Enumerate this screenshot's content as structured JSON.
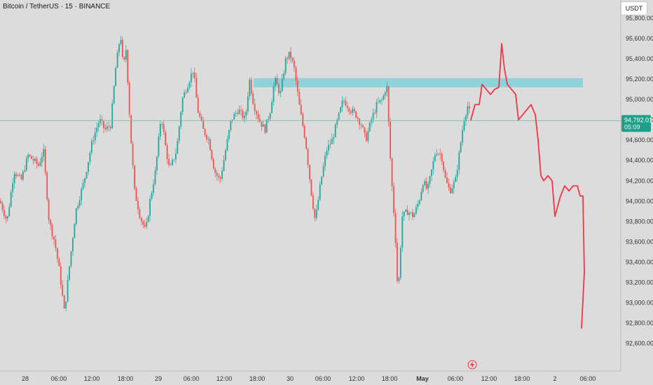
{
  "header": {
    "title": "Bitcoin / TetherUS · 15 · BINANCE",
    "currency_button": "USDT"
  },
  "colors": {
    "up": "#26a69a",
    "down": "#ef5350",
    "zone": "#8fd3da",
    "drawing": "#f23645",
    "price_line": "#7fb8a6",
    "badge": "#1f9e8a"
  },
  "chart_data": {
    "type": "candlestick",
    "title": "Bitcoin / TetherUS · 15 · BINANCE",
    "ylim": [
      92500,
      95950
    ],
    "y_ticks": [
      "95,800.00",
      "95,600.00",
      "95,400.00",
      "95,200.00",
      "95,000.00",
      "94,800.00",
      "94,600.00",
      "94,400.00",
      "94,200.00",
      "94,000.00",
      "93,800.00",
      "93,600.00",
      "93,400.00",
      "93,200.00",
      "93,000.00",
      "92,800.00",
      "92,600.00"
    ],
    "x_ticks": [
      "28",
      "06:00",
      "12:00",
      "18:00",
      "29",
      "06:00",
      "12:00",
      "18:00",
      "30",
      "06:00",
      "12:00",
      "18:00",
      "May",
      "06:00",
      "12:00",
      "18:00",
      "2",
      "06:00"
    ],
    "current_price": "94,792.01",
    "countdown": "05:09",
    "price_path": [
      [
        0,
        94000
      ],
      [
        10,
        93800
      ],
      [
        20,
        94300
      ],
      [
        30,
        94200
      ],
      [
        40,
        94450
      ],
      [
        48,
        94400
      ],
      [
        55,
        94350
      ],
      [
        62,
        94500
      ],
      [
        70,
        93800
      ],
      [
        78,
        93600
      ],
      [
        85,
        93300
      ],
      [
        92,
        92900
      ],
      [
        98,
        93300
      ],
      [
        108,
        93900
      ],
      [
        120,
        94200
      ],
      [
        132,
        94600
      ],
      [
        142,
        94800
      ],
      [
        150,
        94700
      ],
      [
        158,
        94750
      ],
      [
        165,
        95300
      ],
      [
        172,
        95650
      ],
      [
        176,
        95300
      ],
      [
        180,
        95500
      ],
      [
        186,
        94700
      ],
      [
        192,
        94100
      ],
      [
        200,
        93850
      ],
      [
        208,
        93700
      ],
      [
        214,
        94000
      ],
      [
        222,
        94300
      ],
      [
        230,
        94850
      ],
      [
        236,
        94550
      ],
      [
        242,
        94300
      ],
      [
        252,
        94500
      ],
      [
        260,
        95000
      ],
      [
        268,
        95150
      ],
      [
        276,
        95300
      ],
      [
        282,
        94900
      ],
      [
        290,
        94700
      ],
      [
        298,
        94600
      ],
      [
        306,
        94300
      ],
      [
        314,
        94200
      ],
      [
        322,
        94500
      ],
      [
        330,
        94800
      ],
      [
        340,
        94900
      ],
      [
        350,
        94800
      ],
      [
        356,
        95200
      ],
      [
        362,
        94950
      ],
      [
        370,
        94800
      ],
      [
        378,
        94700
      ],
      [
        386,
        94900
      ],
      [
        392,
        95200
      ],
      [
        400,
        95050
      ],
      [
        408,
        95400
      ],
      [
        414,
        95450
      ],
      [
        420,
        95300
      ],
      [
        428,
        94900
      ],
      [
        436,
        94600
      ],
      [
        444,
        94100
      ],
      [
        450,
        93800
      ],
      [
        458,
        94200
      ],
      [
        466,
        94500
      ],
      [
        474,
        94600
      ],
      [
        482,
        94800
      ],
      [
        490,
        95000
      ],
      [
        500,
        94900
      ],
      [
        508,
        94850
      ],
      [
        516,
        94750
      ],
      [
        522,
        94600
      ],
      [
        530,
        94800
      ],
      [
        538,
        94950
      ],
      [
        546,
        95000
      ],
      [
        552,
        95150
      ],
      [
        558,
        94300
      ],
      [
        564,
        93700
      ],
      [
        568,
        93050
      ],
      [
        574,
        93850
      ],
      [
        582,
        93900
      ],
      [
        590,
        93850
      ],
      [
        598,
        94000
      ],
      [
        604,
        94200
      ],
      [
        610,
        94100
      ],
      [
        616,
        94300
      ],
      [
        622,
        94500
      ],
      [
        630,
        94450
      ],
      [
        636,
        94200
      ],
      [
        642,
        94100
      ],
      [
        650,
        94200
      ],
      [
        656,
        94500
      ],
      [
        662,
        94800
      ],
      [
        668,
        94950
      ],
      [
        672,
        94800
      ]
    ],
    "drawing_path": [
      [
        672,
        94800
      ],
      [
        678,
        94950
      ],
      [
        684,
        94950
      ],
      [
        688,
        95150
      ],
      [
        694,
        95100
      ],
      [
        700,
        95050
      ],
      [
        706,
        95100
      ],
      [
        712,
        95120
      ],
      [
        716,
        95550
      ],
      [
        720,
        95300
      ],
      [
        724,
        95150
      ],
      [
        730,
        95100
      ],
      [
        736,
        95050
      ],
      [
        740,
        94800
      ],
      [
        746,
        94850
      ],
      [
        752,
        94900
      ],
      [
        758,
        94950
      ],
      [
        764,
        94850
      ],
      [
        768,
        94600
      ],
      [
        772,
        94250
      ],
      [
        776,
        94200
      ],
      [
        782,
        94250
      ],
      [
        788,
        94200
      ],
      [
        792,
        93850
      ],
      [
        796,
        93950
      ],
      [
        800,
        94050
      ],
      [
        806,
        94150
      ],
      [
        812,
        94100
      ],
      [
        818,
        94150
      ],
      [
        824,
        94150
      ],
      [
        828,
        94050
      ],
      [
        832,
        94050
      ],
      [
        834,
        93300
      ],
      [
        830,
        92750
      ]
    ],
    "zone": {
      "from_x": 362,
      "to_x": 832,
      "y_low": 95120,
      "y_high": 95210
    }
  }
}
